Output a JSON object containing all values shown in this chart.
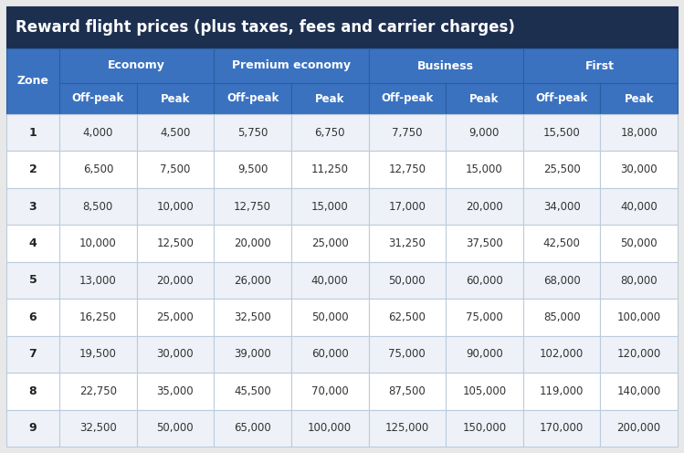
{
  "title": "Reward flight prices (plus taxes, fees and carrier charges)",
  "title_bg": "#1d2f4f",
  "title_color": "#ffffff",
  "header1_bg": "#3a72c0",
  "header2_bg": "#3a72c0",
  "header_color": "#ffffff",
  "row_bg_odd": "#eef2f8",
  "row_bg_even": "#ffffff",
  "outer_bg": "#e8e8e8",
  "border_color": "#9ab0d0",
  "zone_col_color": "#222222",
  "data_color": "#333333",
  "col_headers_level1": [
    "Zone",
    "Economy",
    "Premium economy",
    "Business",
    "First"
  ],
  "col_headers_level2": [
    "Off-peak",
    "Peak",
    "Off-peak",
    "Peak",
    "Off-peak",
    "Peak",
    "Off-peak",
    "Peak"
  ],
  "zones": [
    1,
    2,
    3,
    4,
    5,
    6,
    7,
    8,
    9
  ],
  "data": [
    [
      "4,000",
      "4,500",
      "5,750",
      "6,750",
      "7,750",
      "9,000",
      "15,500",
      "18,000"
    ],
    [
      "6,500",
      "7,500",
      "9,500",
      "11,250",
      "12,750",
      "15,000",
      "25,500",
      "30,000"
    ],
    [
      "8,500",
      "10,000",
      "12,750",
      "15,000",
      "17,000",
      "20,000",
      "34,000",
      "40,000"
    ],
    [
      "10,000",
      "12,500",
      "20,000",
      "25,000",
      "31,250",
      "37,500",
      "42,500",
      "50,000"
    ],
    [
      "13,000",
      "20,000",
      "26,000",
      "40,000",
      "50,000",
      "60,000",
      "68,000",
      "80,000"
    ],
    [
      "16,250",
      "25,000",
      "32,500",
      "50,000",
      "62,500",
      "75,000",
      "85,000",
      "100,000"
    ],
    [
      "19,500",
      "30,000",
      "39,000",
      "60,000",
      "75,000",
      "90,000",
      "102,000",
      "120,000"
    ],
    [
      "22,750",
      "35,000",
      "45,500",
      "70,000",
      "87,500",
      "105,000",
      "119,000",
      "140,000"
    ],
    [
      "32,500",
      "50,000",
      "65,000",
      "100,000",
      "125,000",
      "150,000",
      "170,000",
      "200,000"
    ]
  ],
  "figsize": [
    7.49,
    4.96
  ],
  "dpi": 100
}
